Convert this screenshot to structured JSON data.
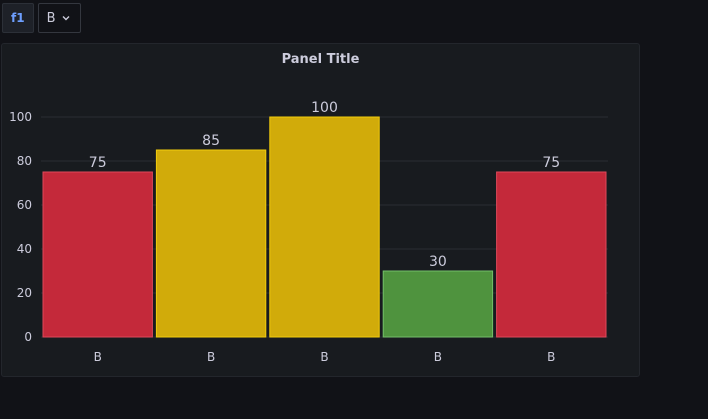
{
  "variable": {
    "label": "f1",
    "value": "B"
  },
  "panel": {
    "title": "Panel Title"
  },
  "colors": {
    "red": "#c4293a",
    "yellow": "#d1ab0a",
    "green": "#4f933e",
    "red_border": "#e0485a",
    "yellow_border": "#f2cc0c",
    "green_border": "#73bf69",
    "grid": "#2a2d33"
  },
  "chart_data": {
    "type": "bar",
    "title": "Panel Title",
    "categories": [
      "B",
      "B",
      "B",
      "B",
      "B"
    ],
    "values": [
      75,
      85,
      100,
      30,
      75
    ],
    "bar_colors": [
      "red",
      "yellow",
      "yellow",
      "green",
      "red"
    ],
    "ylim": [
      0,
      100
    ],
    "yticks": [
      0,
      20,
      40,
      60,
      80,
      100
    ],
    "grid": true,
    "legend": "none",
    "xlabel": "",
    "ylabel": ""
  }
}
